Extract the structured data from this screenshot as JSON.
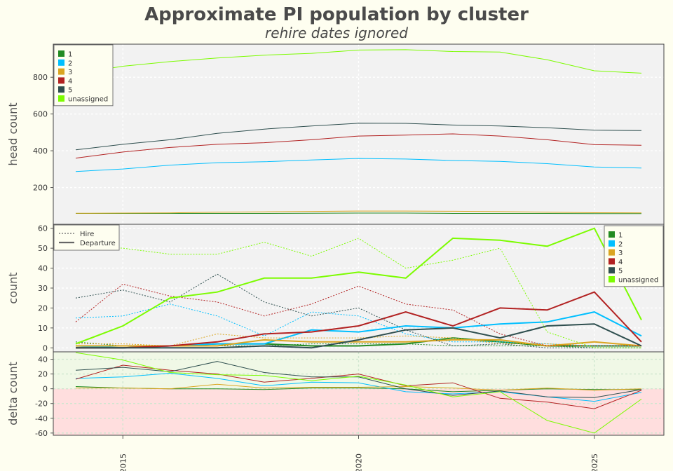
{
  "title": "Approximate PI population by cluster",
  "subtitle": "rehire dates ignored",
  "colors": {
    "1": "#228b22",
    "2": "#00bfff",
    "3": "#daa520",
    "4": "#b22222",
    "5": "#2f4f4f",
    "unassigned": "#7cfc00",
    "panel_bg": "#f2f2f2",
    "delta_pos": "#f0f8e6",
    "delta_neg": "#ffdede"
  },
  "chart_data": [
    {
      "type": "line",
      "panel": "head",
      "ylabel": "head count",
      "ylim": [
        0,
        980
      ],
      "yticks": [
        200,
        400,
        600,
        800
      ],
      "x": [
        2014,
        2015,
        2016,
        2017,
        2018,
        2019,
        2020,
        2021,
        2022,
        2023,
        2024,
        2025,
        2026
      ],
      "series": [
        {
          "name": "1",
          "values": [
            59,
            59,
            59,
            59,
            59,
            60,
            61,
            61,
            59,
            59,
            59,
            58,
            58
          ]
        },
        {
          "name": "2",
          "values": [
            287,
            301,
            322,
            335,
            340,
            350,
            358,
            355,
            347,
            342,
            330,
            312,
            306
          ]
        },
        {
          "name": "3",
          "values": [
            60,
            61,
            62,
            66,
            68,
            70,
            72,
            72,
            71,
            69,
            66,
            63,
            62
          ]
        },
        {
          "name": "4",
          "values": [
            360,
            393,
            418,
            435,
            444,
            460,
            480,
            485,
            492,
            480,
            460,
            433,
            430
          ]
        },
        {
          "name": "5",
          "values": [
            405,
            435,
            460,
            495,
            518,
            535,
            550,
            549,
            540,
            535,
            525,
            512,
            510
          ]
        },
        {
          "name": "unassigned",
          "values": [
            820,
            860,
            885,
            905,
            920,
            930,
            948,
            950,
            940,
            937,
            895,
            835,
            822
          ]
        }
      ],
      "legend": [
        "1",
        "2",
        "3",
        "4",
        "5",
        "unassigned"
      ],
      "legend_position": "top-left"
    },
    {
      "type": "line",
      "panel": "count",
      "ylabel": "count",
      "ylim": [
        -2,
        62
      ],
      "yticks": [
        0,
        10,
        20,
        30,
        40,
        50,
        60
      ],
      "x": [
        2014,
        2015,
        2016,
        2017,
        2018,
        2019,
        2020,
        2021,
        2022,
        2023,
        2024,
        2025,
        2026
      ],
      "style_legend": [
        "Hire",
        "Departure"
      ],
      "style_legend_position": "top-left",
      "legend": [
        "1",
        "2",
        "3",
        "4",
        "5",
        "unassigned"
      ],
      "legend_position": "right",
      "series": [
        {
          "name": "1",
          "kind": "Hire",
          "values": [
            3,
            1,
            1,
            1,
            1,
            2,
            2,
            2,
            1,
            1,
            1,
            0,
            0
          ]
        },
        {
          "name": "1",
          "kind": "Departure",
          "values": [
            0,
            0,
            1,
            2,
            2,
            1,
            1,
            2,
            5,
            3,
            1,
            1,
            1
          ]
        },
        {
          "name": "2",
          "kind": "Hire",
          "values": [
            15,
            16,
            22,
            16,
            6,
            18,
            16,
            7,
            3,
            3,
            2,
            1,
            1
          ]
        },
        {
          "name": "2",
          "kind": "Departure",
          "values": [
            1,
            0,
            1,
            2,
            2,
            9,
            8,
            11,
            10,
            12,
            13,
            18,
            6
          ]
        },
        {
          "name": "3",
          "kind": "Hire",
          "values": [
            2,
            2,
            1,
            7,
            5,
            5,
            5,
            6,
            5,
            2,
            2,
            1,
            1
          ]
        },
        {
          "name": "3",
          "kind": "Departure",
          "values": [
            1,
            1,
            1,
            1,
            4,
            3,
            3,
            3,
            4,
            4,
            1,
            3,
            1
          ]
        },
        {
          "name": "4",
          "kind": "Hire",
          "values": [
            13,
            32,
            26,
            23,
            16,
            22,
            31,
            22,
            19,
            7,
            1,
            1,
            1
          ]
        },
        {
          "name": "4",
          "kind": "Departure",
          "values": [
            0,
            0,
            1,
            3,
            7,
            8,
            11,
            18,
            11,
            20,
            19,
            28,
            3
          ]
        },
        {
          "name": "5",
          "kind": "Hire",
          "values": [
            25,
            29,
            23,
            37,
            23,
            16,
            20,
            9,
            1,
            2,
            0,
            0,
            0
          ]
        },
        {
          "name": "5",
          "kind": "Departure",
          "values": [
            0,
            0,
            0,
            0,
            1,
            0,
            4,
            9,
            10,
            5,
            11,
            12,
            1
          ]
        },
        {
          "name": "unassigned",
          "kind": "Hire",
          "values": [
            51,
            50,
            47,
            47,
            53,
            46,
            55,
            40,
            44,
            50,
            8,
            0,
            0
          ]
        },
        {
          "name": "unassigned",
          "kind": "Departure",
          "values": [
            2,
            11,
            25,
            28,
            35,
            35,
            38,
            35,
            55,
            54,
            51,
            60,
            14
          ]
        }
      ]
    },
    {
      "type": "line",
      "panel": "delta",
      "ylabel": "delta count",
      "ylim": [
        -63,
        50
      ],
      "yticks": [
        -60,
        -40,
        -20,
        0,
        20,
        40
      ],
      "x": [
        2014,
        2015,
        2016,
        2017,
        2018,
        2019,
        2020,
        2021,
        2022,
        2023,
        2024,
        2025,
        2026
      ],
      "xticks": [
        2015,
        2020,
        2025
      ],
      "series": [
        {
          "name": "1",
          "values": [
            3,
            1,
            0,
            0,
            -1,
            1,
            1,
            0,
            -4,
            -2,
            0,
            -1,
            -1
          ]
        },
        {
          "name": "2",
          "values": [
            14,
            16,
            21,
            14,
            4,
            9,
            8,
            -4,
            -7,
            -4,
            -11,
            -17,
            -5
          ]
        },
        {
          "name": "3",
          "values": [
            1,
            1,
            0,
            6,
            1,
            2,
            2,
            3,
            1,
            -2,
            1,
            -2,
            0
          ]
        },
        {
          "name": "4",
          "values": [
            13,
            32,
            25,
            20,
            9,
            14,
            20,
            4,
            8,
            -13,
            -18,
            -27,
            -2
          ]
        },
        {
          "name": "5",
          "values": [
            25,
            29,
            23,
            37,
            22,
            16,
            16,
            0,
            -9,
            -3,
            -11,
            -12,
            -1
          ]
        },
        {
          "name": "unassigned",
          "values": [
            49,
            39,
            22,
            19,
            18,
            11,
            17,
            5,
            -11,
            -4,
            -43,
            -60,
            -14
          ]
        }
      ]
    }
  ]
}
